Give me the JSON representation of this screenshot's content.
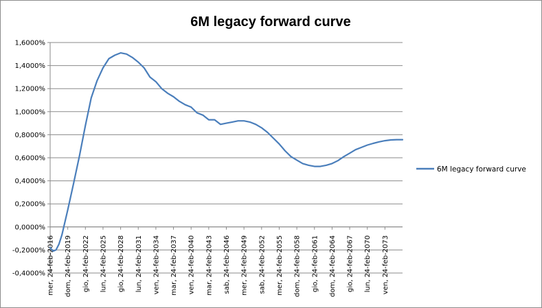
{
  "chart_data": {
    "type": "line",
    "title": "6M legacy forward curve",
    "xlabel": "",
    "ylabel": "",
    "ylim": [
      -0.4,
      1.6
    ],
    "y_ticks": [
      -0.4,
      -0.2,
      0.0,
      0.2,
      0.4,
      0.6,
      0.8,
      1.0,
      1.2,
      1.4,
      1.6
    ],
    "y_tick_labels": [
      "-0,4000%",
      "-0,2000%",
      "0,0000%",
      "0,2000%",
      "0,4000%",
      "0,6000%",
      "0,8000%",
      "1,0000%",
      "1,2000%",
      "1,4000%",
      "1,6000%"
    ],
    "x_range_years": [
      2016,
      2076
    ],
    "x_tick_years": [
      2016,
      2019,
      2022,
      2025,
      2028,
      2031,
      2034,
      2037,
      2040,
      2043,
      2046,
      2049,
      2052,
      2055,
      2058,
      2061,
      2064,
      2067,
      2070,
      2073
    ],
    "x_tick_labels": [
      "mer, 24-feb-2016",
      "dom, 24-feb-2019",
      "gio, 24-feb-2022",
      "lun, 24-feb-2025",
      "gio, 24-feb-2028",
      "lun, 24-feb-2031",
      "ven, 24-feb-2034",
      "mar, 24-feb-2037",
      "ven, 24-feb-2040",
      "mar, 24-feb-2043",
      "sab, 24-feb-2046",
      "mer, 24-feb-2049",
      "sab, 24-feb-2052",
      "mer, 24-feb-2055",
      "dom, 24-feb-2058",
      "gio, 24-feb-2061",
      "dom, 24-feb-2064",
      "gio, 24-feb-2067",
      "lun, 24-feb-2070",
      "ven, 24-feb-2073"
    ],
    "grid": "horizontal",
    "legend_position": "right",
    "series": [
      {
        "name": "6M legacy forward curve",
        "color": "#4a7ebb",
        "x": [
          2016.0,
          2016.5,
          2017.0,
          2017.5,
          2018.0,
          2019.0,
          2020.0,
          2021.0,
          2022.0,
          2023.0,
          2024.0,
          2025.0,
          2026.0,
          2027.0,
          2028.0,
          2029.0,
          2030.0,
          2031.0,
          2032.0,
          2033.0,
          2034.0,
          2035.0,
          2036.0,
          2037.0,
          2038.0,
          2039.0,
          2040.0,
          2041.0,
          2042.0,
          2043.0,
          2044.0,
          2045.0,
          2046.0,
          2047.0,
          2048.0,
          2049.0,
          2050.0,
          2051.0,
          2052.0,
          2053.0,
          2054.0,
          2055.0,
          2056.0,
          2057.0,
          2058.0,
          2059.0,
          2060.0,
          2061.0,
          2062.0,
          2063.0,
          2064.0,
          2065.0,
          2066.0,
          2067.0,
          2068.0,
          2069.0,
          2070.0,
          2071.0,
          2072.0,
          2073.0,
          2074.0,
          2075.0,
          2076.0
        ],
        "y": [
          -0.18,
          -0.21,
          -0.2,
          -0.15,
          -0.07,
          0.15,
          0.38,
          0.62,
          0.88,
          1.12,
          1.27,
          1.38,
          1.46,
          1.49,
          1.51,
          1.5,
          1.47,
          1.43,
          1.38,
          1.3,
          1.26,
          1.2,
          1.16,
          1.13,
          1.09,
          1.06,
          1.04,
          0.99,
          0.97,
          0.93,
          0.93,
          0.89,
          0.9,
          0.91,
          0.92,
          0.92,
          0.91,
          0.89,
          0.86,
          0.82,
          0.77,
          0.72,
          0.66,
          0.61,
          0.58,
          0.55,
          0.535,
          0.525,
          0.525,
          0.535,
          0.55,
          0.575,
          0.61,
          0.64,
          0.67,
          0.69,
          0.71,
          0.725,
          0.738,
          0.748,
          0.755,
          0.757,
          0.757
        ]
      }
    ]
  }
}
